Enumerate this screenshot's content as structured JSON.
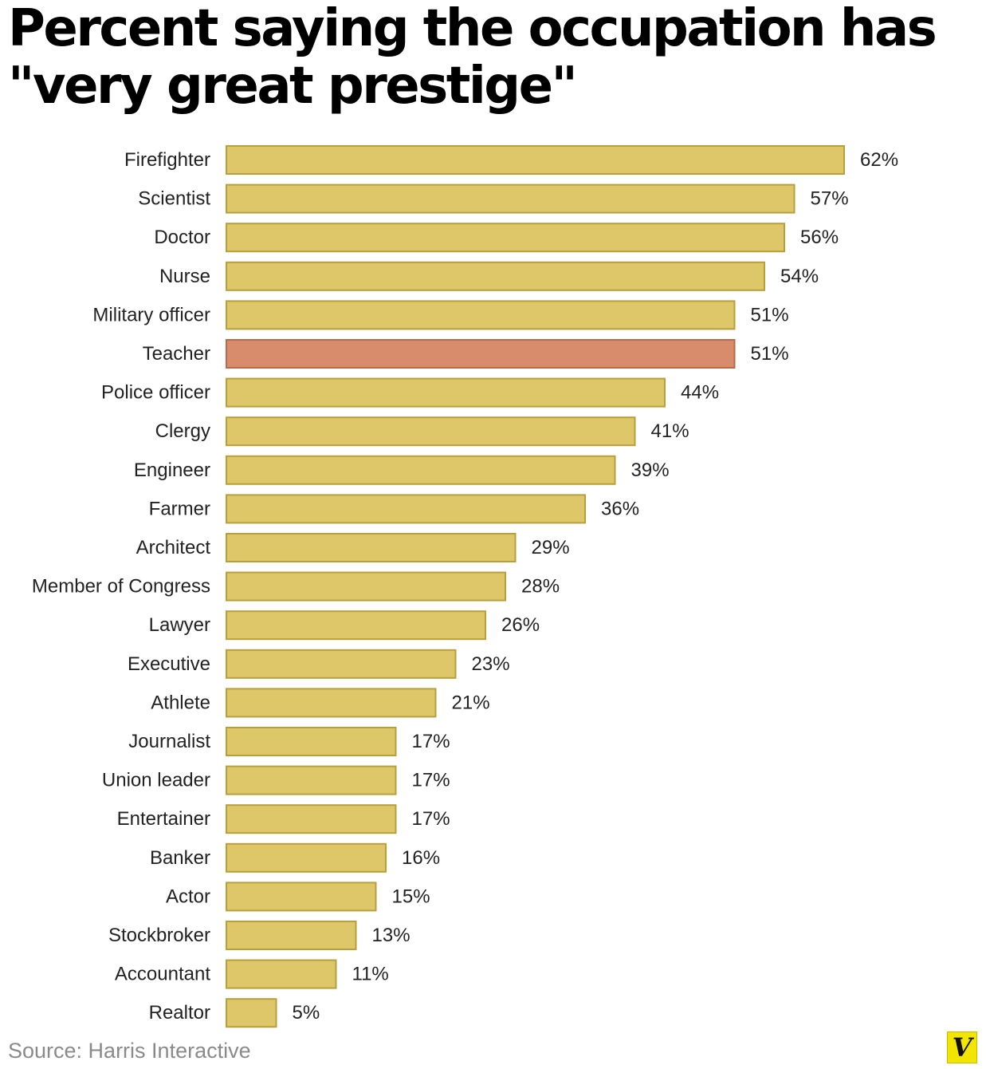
{
  "chart_data": {
    "type": "bar",
    "orientation": "horizontal",
    "title": "Percent saying the occupation has \"very great prestige\"",
    "categories": [
      "Firefighter",
      "Scientist",
      "Doctor",
      "Nurse",
      "Military officer",
      "Teacher",
      "Police officer",
      "Clergy",
      "Engineer",
      "Farmer",
      "Architect",
      "Member of Congress",
      "Lawyer",
      "Executive",
      "Athlete",
      "Journalist",
      "Union leader",
      "Entertainer",
      "Banker",
      "Actor",
      "Stockbroker",
      "Accountant",
      "Realtor"
    ],
    "values": [
      62,
      57,
      56,
      54,
      51,
      51,
      44,
      41,
      39,
      36,
      29,
      28,
      26,
      23,
      21,
      17,
      17,
      17,
      16,
      15,
      13,
      11,
      5
    ],
    "value_labels": [
      "62%",
      "57%",
      "56%",
      "54%",
      "51%",
      "51%",
      "44%",
      "41%",
      "39%",
      "36%",
      "29%",
      "28%",
      "26%",
      "23%",
      "21%",
      "17%",
      "17%",
      "17%",
      "16%",
      "15%",
      "13%",
      "11%",
      "5%"
    ],
    "highlight": "Teacher",
    "colors": {
      "bar": "#ddc768",
      "bar_border": "#b89f3c",
      "highlight": "#d98c6b",
      "highlight_border": "#b86a4d"
    },
    "grid": false,
    "legend": "none"
  },
  "source": "Source: Harris Interactive",
  "logo": {
    "letter": "V",
    "icon": "vox-logo-icon",
    "color": "#f2e600"
  }
}
